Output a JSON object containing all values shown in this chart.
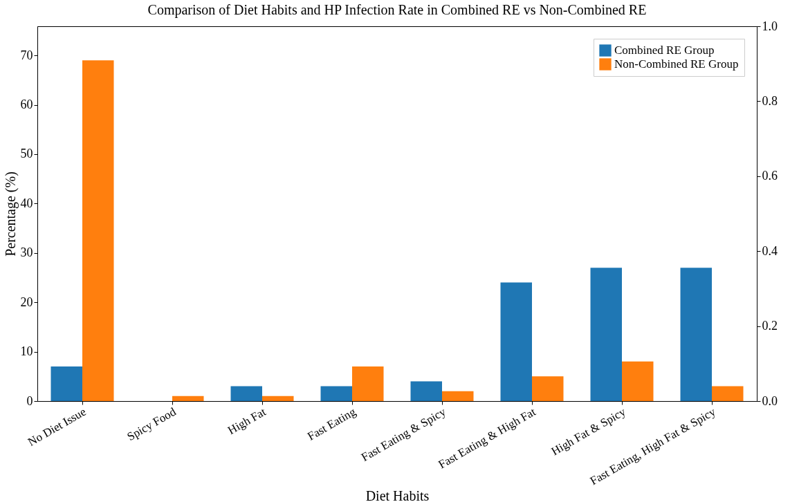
{
  "chart_data": {
    "type": "bar",
    "title": "Comparison of Diet Habits and HP Infection Rate in Combined RE vs Non-Combined RE",
    "xlabel": "Diet Habits",
    "ylabel": "Percentage (%)",
    "categories": [
      "No Diet Issue",
      "Spicy Food",
      "High Fat",
      "Fast Eating",
      "Fast Eating & Spicy",
      "Fast Eating & High Fat",
      "High Fat & Spicy",
      "Fast Eating, High Fat & Spicy"
    ],
    "series": [
      {
        "name": "Combined RE Group",
        "color": "#1f77b4",
        "values": [
          7,
          0,
          3,
          3,
          4,
          24,
          27,
          27
        ]
      },
      {
        "name": "Non-Combined RE Group",
        "color": "#ff7f0e",
        "values": [
          69,
          1,
          1,
          7,
          2,
          5,
          8,
          3
        ]
      }
    ],
    "ylim": [
      0,
      75.9
    ],
    "yticks": [
      0,
      10,
      20,
      30,
      40,
      50,
      60,
      70
    ],
    "y2lim": [
      0,
      1
    ],
    "y2ticks": [
      {
        "value": 0,
        "label": "0.0"
      },
      {
        "value": 0.2,
        "label": "0.2"
      },
      {
        "value": 0.4,
        "label": "0.4"
      },
      {
        "value": 0.6,
        "label": "0.6"
      },
      {
        "value": 0.8,
        "label": "0.8"
      },
      {
        "value": 1,
        "label": "1.0"
      }
    ],
    "legend": "top right",
    "grid": false
  }
}
